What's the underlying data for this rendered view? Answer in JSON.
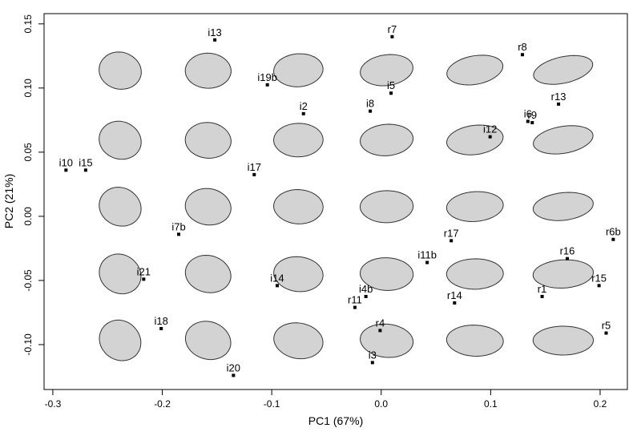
{
  "chart_data": {
    "type": "scatter",
    "x_label": "PC1 (67%)",
    "y_label": "PC2 (21%)",
    "color": "#000000",
    "labels": [
      "i13",
      "r7",
      "r8",
      "i19b",
      "i5",
      "r13",
      "i2",
      "i8",
      "i6",
      "r9",
      "i12",
      "i10",
      "i15",
      "i17",
      "i7b",
      "r17",
      "r6b",
      "r16",
      "i11b",
      "i21",
      "i14",
      "r15",
      "i4b",
      "r1",
      "r11",
      "r14",
      "i18",
      "r4",
      "r5",
      "i3",
      "i20"
    ],
    "x": [
      -0.152,
      0.01,
      0.129,
      -0.104,
      0.009,
      0.162,
      -0.071,
      -0.01,
      0.134,
      0.138,
      0.0995,
      -0.288,
      -0.27,
      -0.116,
      -0.185,
      0.064,
      0.212,
      0.17,
      0.042,
      -0.217,
      -0.095,
      0.199,
      -0.014,
      0.147,
      -0.024,
      0.067,
      -0.201,
      -0.001,
      0.2055,
      -0.008,
      -0.135
    ],
    "values": [
      0.1375,
      0.14,
      0.126,
      0.1025,
      0.096,
      0.0875,
      0.08,
      0.082,
      0.074,
      0.073,
      0.062,
      0.036,
      0.036,
      0.0325,
      -0.014,
      -0.019,
      -0.018,
      -0.033,
      -0.036,
      -0.049,
      -0.054,
      -0.054,
      -0.0625,
      -0.0625,
      -0.071,
      -0.0675,
      -0.0875,
      -0.089,
      -0.091,
      -0.114,
      -0.124
    ],
    "xlim": [
      -0.308,
      0.2249
    ],
    "ylim": [
      -0.135,
      0.158
    ],
    "xticks": [
      -0.3,
      -0.2,
      -0.1,
      {
        "value": 0,
        "label": "0.0"
      },
      0.1,
      0.2
    ],
    "yticks": [
      {
        "value": -0.1,
        "label": "-0.10"
      },
      -0.05,
      {
        "value": 0,
        "label": "0.00"
      },
      0.05,
      {
        "value": 0.1,
        "label": "0.10"
      },
      0.15
    ]
  }
}
